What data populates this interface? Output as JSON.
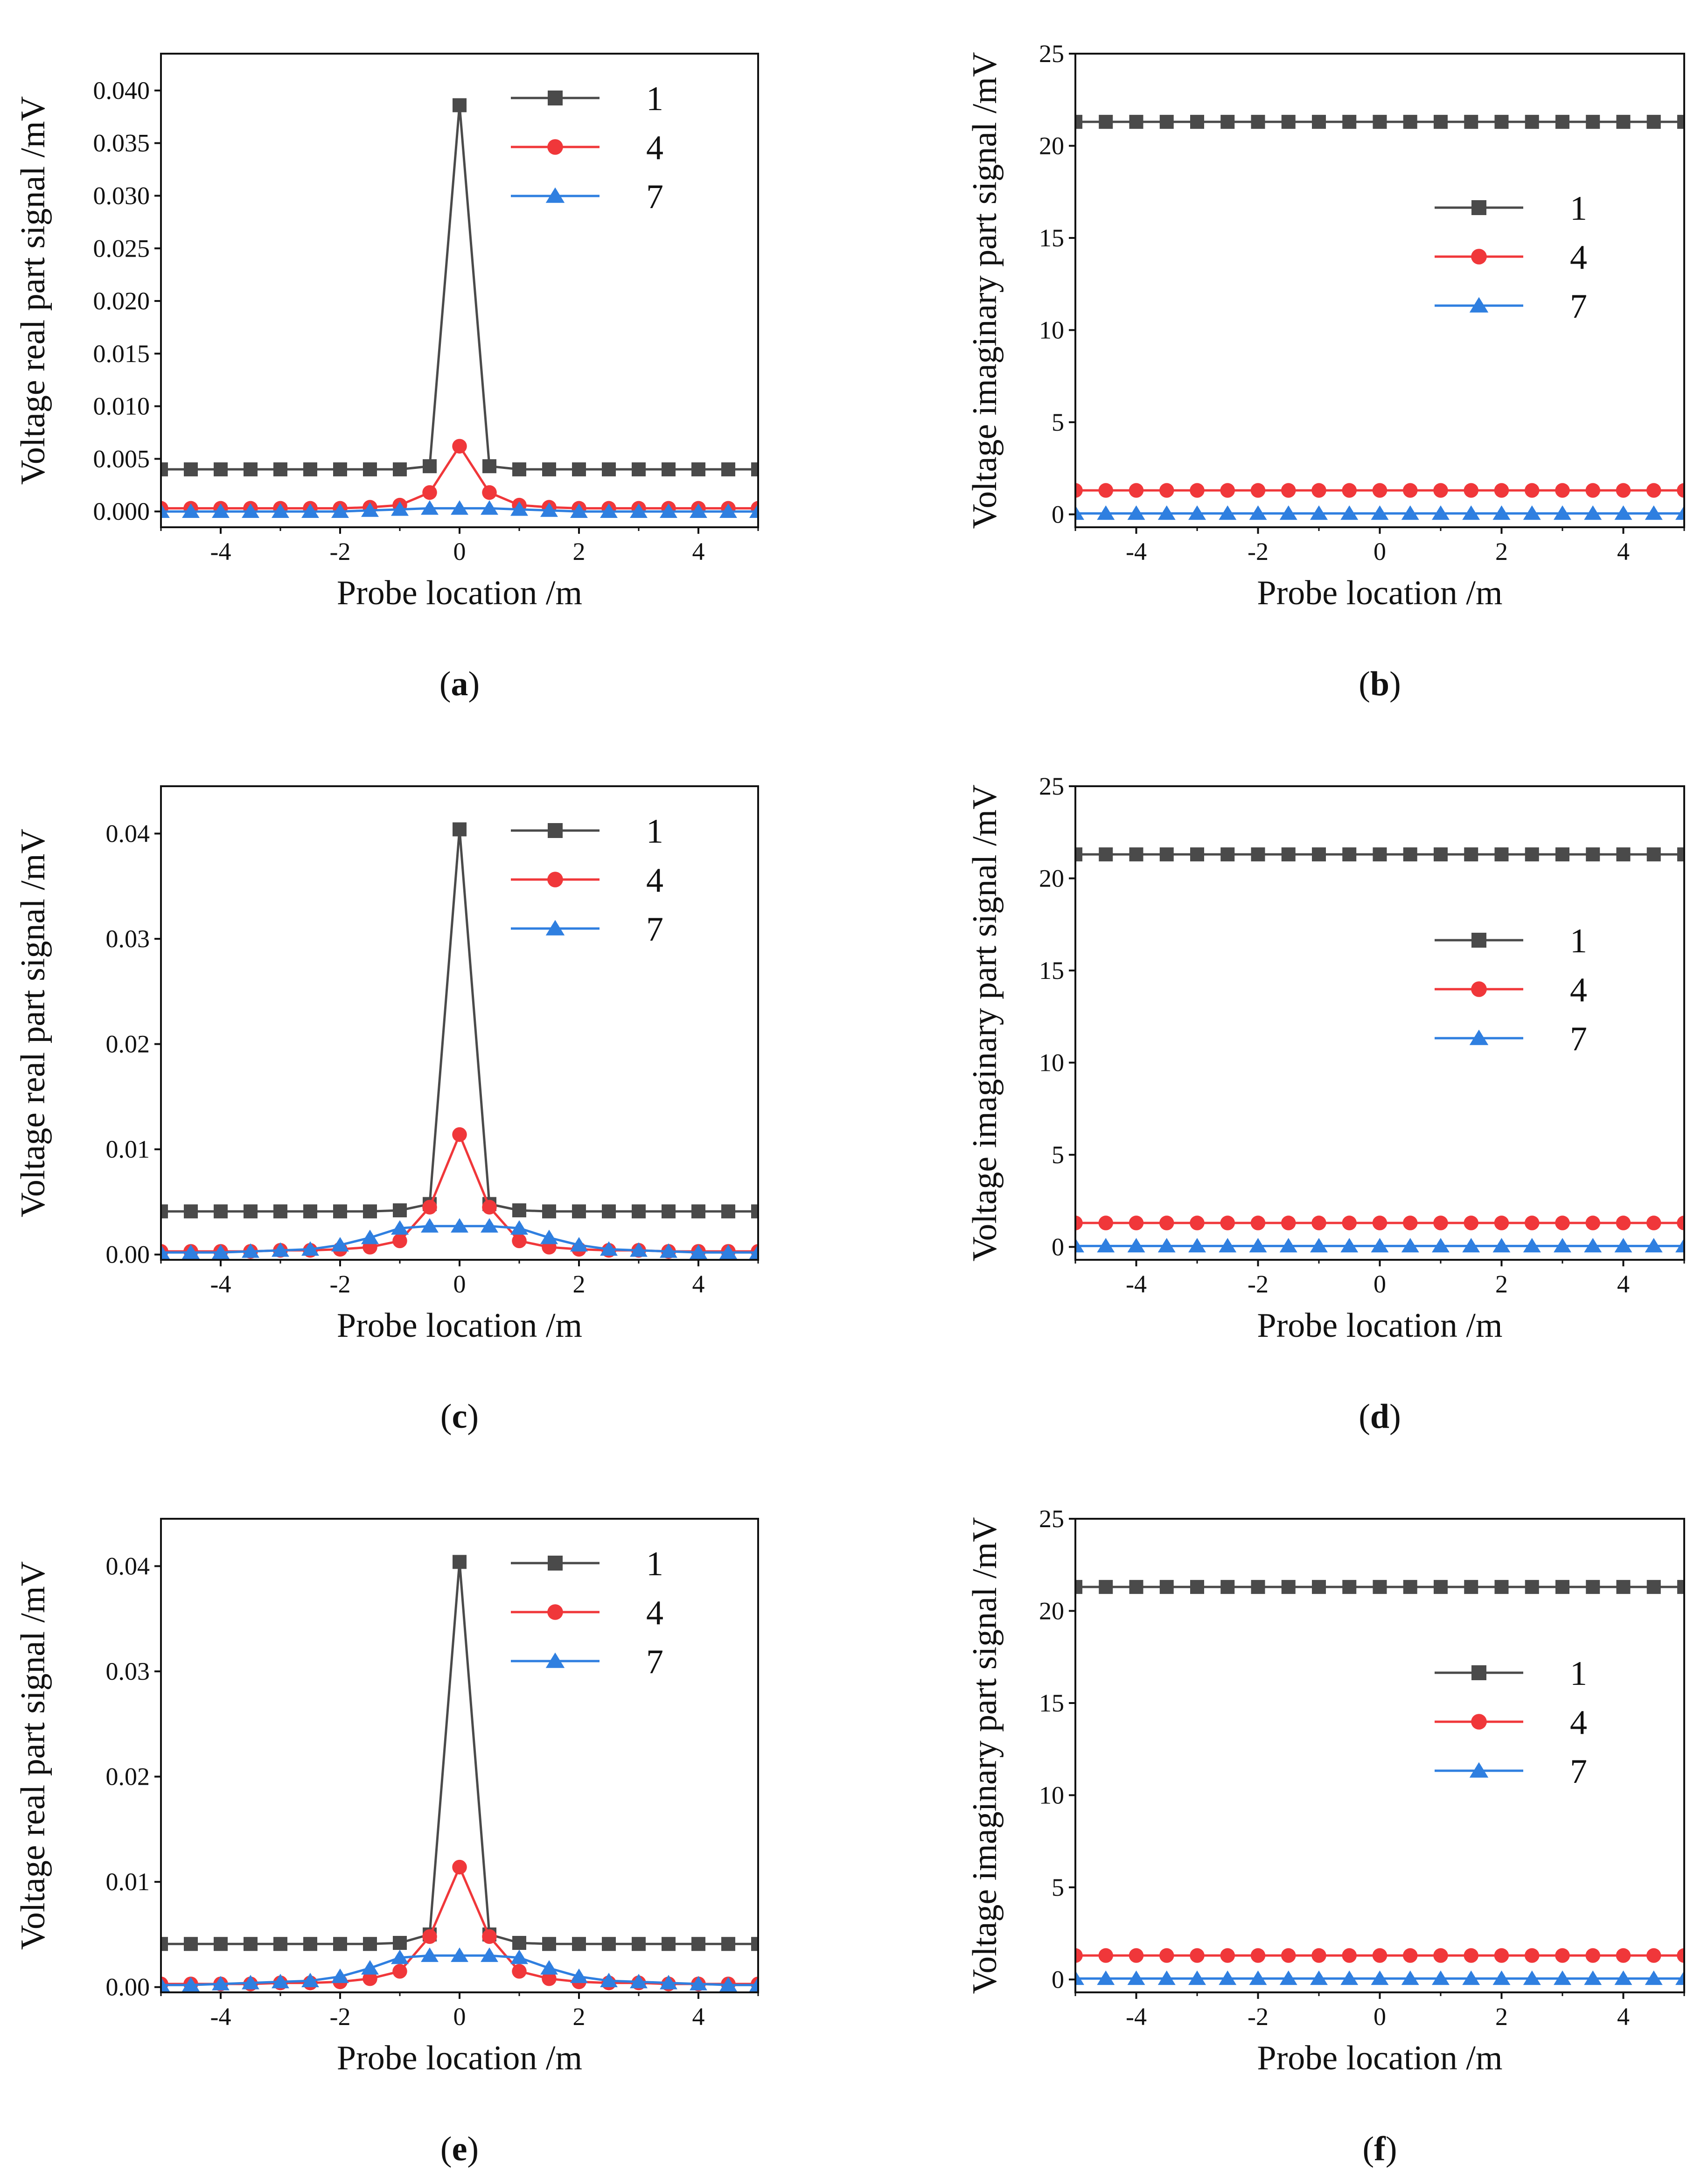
{
  "figure": {
    "colors": {
      "s1": "#4a4a4a",
      "s4": "#f0373a",
      "s7": "#2f7fe0",
      "axis": "#111111"
    }
  },
  "chart_data": [
    {
      "panel": "a",
      "caption": "(a)",
      "type": "line",
      "xlabel": "Probe location  /m",
      "ylabel": "Voltage real part signal /mV",
      "xlim": [
        -5,
        5
      ],
      "ylim": [
        -0.0015,
        0.0435
      ],
      "xticks": [
        -4,
        -2,
        0,
        2,
        4
      ],
      "xtick_labels": [
        "-4",
        "-2",
        "0",
        "2",
        "4"
      ],
      "yticks": [
        0,
        0.005,
        0.01,
        0.015,
        0.02,
        0.025,
        0.03,
        0.035,
        0.04
      ],
      "ytick_labels": [
        "0.000",
        "0.005",
        "0.010",
        "0.015",
        "0.020",
        "0.025",
        "0.030",
        "0.035",
        "0.040"
      ],
      "legend_position": "top-center",
      "x": [
        -5,
        -4.5,
        -4,
        -3.5,
        -3,
        -2.5,
        -2,
        -1.5,
        -1,
        -0.5,
        0,
        0.5,
        1,
        1.5,
        2,
        2.5,
        3,
        3.5,
        4,
        4.5,
        5
      ],
      "series": [
        {
          "name": "1",
          "marker": "square",
          "values": [
            0.004,
            0.004,
            0.004,
            0.004,
            0.004,
            0.004,
            0.004,
            0.004,
            0.004,
            0.0043,
            0.0386,
            0.0043,
            0.004,
            0.004,
            0.004,
            0.004,
            0.004,
            0.004,
            0.004,
            0.004,
            0.004
          ]
        },
        {
          "name": "4",
          "marker": "circle",
          "values": [
            0.0003,
            0.0003,
            0.0003,
            0.0003,
            0.0003,
            0.0003,
            0.0003,
            0.0004,
            0.0006,
            0.0018,
            0.0062,
            0.0018,
            0.0006,
            0.0004,
            0.0003,
            0.0003,
            0.0003,
            0.0003,
            0.0003,
            0.0003,
            0.0003
          ]
        },
        {
          "name": "7",
          "marker": "triangle",
          "values": [
            0.0,
            0.0,
            0.0,
            0.0,
            0.0,
            0.0,
            0.0,
            0.0001,
            0.0002,
            0.0003,
            0.0003,
            0.0003,
            0.0002,
            0.0001,
            0.0,
            0.0,
            0.0,
            0.0,
            0.0,
            0.0,
            0.0
          ]
        }
      ]
    },
    {
      "panel": "b",
      "caption": "(b)",
      "type": "line",
      "xlabel": "Probe location  /m",
      "ylabel": "Voltage imaginary part signal /mV",
      "xlim": [
        -5,
        5
      ],
      "ylim": [
        -0.7,
        25
      ],
      "xticks": [
        -4,
        -2,
        0,
        2,
        4
      ],
      "xtick_labels": [
        "-4",
        "-2",
        "0",
        "2",
        "4"
      ],
      "yticks": [
        0,
        5,
        10,
        15,
        20,
        25
      ],
      "ytick_labels": [
        "0",
        "5",
        "10",
        "15",
        "20",
        "25"
      ],
      "legend_position": "center-right",
      "x": [
        -5,
        -4.5,
        -4,
        -3.5,
        -3,
        -2.5,
        -2,
        -1.5,
        -1,
        -0.5,
        0,
        0.5,
        1,
        1.5,
        2,
        2.5,
        3,
        3.5,
        4,
        4.5,
        5
      ],
      "series": [
        {
          "name": "1",
          "marker": "square",
          "values": [
            21.3,
            21.3,
            21.3,
            21.3,
            21.3,
            21.3,
            21.3,
            21.3,
            21.3,
            21.3,
            21.3,
            21.3,
            21.3,
            21.3,
            21.3,
            21.3,
            21.3,
            21.3,
            21.3,
            21.3,
            21.3
          ]
        },
        {
          "name": "4",
          "marker": "circle",
          "values": [
            1.3,
            1.3,
            1.3,
            1.3,
            1.3,
            1.3,
            1.3,
            1.3,
            1.3,
            1.3,
            1.3,
            1.3,
            1.3,
            1.3,
            1.3,
            1.3,
            1.3,
            1.3,
            1.3,
            1.3,
            1.3
          ]
        },
        {
          "name": "7",
          "marker": "triangle",
          "values": [
            0.05,
            0.05,
            0.05,
            0.05,
            0.05,
            0.05,
            0.05,
            0.05,
            0.05,
            0.05,
            0.05,
            0.05,
            0.05,
            0.05,
            0.05,
            0.05,
            0.05,
            0.05,
            0.05,
            0.05,
            0.05
          ]
        }
      ]
    },
    {
      "panel": "c",
      "caption": "(c)",
      "type": "line",
      "xlabel": "Probe location  /m",
      "ylabel": "Voltage real part signal /mV",
      "xlim": [
        -5,
        5
      ],
      "ylim": [
        -0.0005,
        0.0445
      ],
      "xticks": [
        -4,
        -2,
        0,
        2,
        4
      ],
      "xtick_labels": [
        "-4",
        "-2",
        "0",
        "2",
        "4"
      ],
      "yticks": [
        0,
        0.01,
        0.02,
        0.03,
        0.04
      ],
      "ytick_labels": [
        "0.00",
        "0.01",
        "0.02",
        "0.03",
        "0.04"
      ],
      "legend_position": "top-center",
      "x": [
        -5,
        -4.5,
        -4,
        -3.5,
        -3,
        -2.5,
        -2,
        -1.5,
        -1,
        -0.5,
        0,
        0.5,
        1,
        1.5,
        2,
        2.5,
        3,
        3.5,
        4,
        4.5,
        5
      ],
      "series": [
        {
          "name": "1",
          "marker": "square",
          "values": [
            0.0041,
            0.0041,
            0.0041,
            0.0041,
            0.0041,
            0.0041,
            0.0041,
            0.0041,
            0.0042,
            0.0048,
            0.0404,
            0.0048,
            0.0042,
            0.0041,
            0.0041,
            0.0041,
            0.0041,
            0.0041,
            0.0041,
            0.0041,
            0.0041
          ]
        },
        {
          "name": "4",
          "marker": "circle",
          "values": [
            0.0003,
            0.0003,
            0.0003,
            0.0003,
            0.0004,
            0.0004,
            0.0005,
            0.0007,
            0.0013,
            0.0045,
            0.0114,
            0.0045,
            0.0013,
            0.0007,
            0.0005,
            0.0004,
            0.0004,
            0.0003,
            0.0003,
            0.0003,
            0.0003
          ]
        },
        {
          "name": "7",
          "marker": "triangle",
          "values": [
            0.0002,
            0.0002,
            0.0002,
            0.0003,
            0.0004,
            0.0005,
            0.0009,
            0.0016,
            0.0025,
            0.0027,
            0.0027,
            0.0027,
            0.0025,
            0.0016,
            0.0009,
            0.0005,
            0.0004,
            0.0003,
            0.0002,
            0.0002,
            0.0002
          ]
        }
      ]
    },
    {
      "panel": "d",
      "caption": "(d)",
      "type": "line",
      "xlabel": "Probe location  /m",
      "ylabel": "Voltage imaginary part signal /mV",
      "xlim": [
        -5,
        5
      ],
      "ylim": [
        -0.7,
        25
      ],
      "xticks": [
        -4,
        -2,
        0,
        2,
        4
      ],
      "xtick_labels": [
        "-4",
        "-2",
        "0",
        "2",
        "4"
      ],
      "yticks": [
        0,
        5,
        10,
        15,
        20,
        25
      ],
      "ytick_labels": [
        "0",
        "5",
        "10",
        "15",
        "20",
        "25"
      ],
      "legend_position": "center-right",
      "x": [
        -5,
        -4.5,
        -4,
        -3.5,
        -3,
        -2.5,
        -2,
        -1.5,
        -1,
        -0.5,
        0,
        0.5,
        1,
        1.5,
        2,
        2.5,
        3,
        3.5,
        4,
        4.5,
        5
      ],
      "series": [
        {
          "name": "1",
          "marker": "square",
          "values": [
            21.3,
            21.3,
            21.3,
            21.3,
            21.3,
            21.3,
            21.3,
            21.3,
            21.3,
            21.3,
            21.3,
            21.3,
            21.3,
            21.3,
            21.3,
            21.3,
            21.3,
            21.3,
            21.3,
            21.3,
            21.3
          ]
        },
        {
          "name": "4",
          "marker": "circle",
          "values": [
            1.3,
            1.3,
            1.3,
            1.3,
            1.3,
            1.3,
            1.3,
            1.3,
            1.3,
            1.3,
            1.3,
            1.3,
            1.3,
            1.3,
            1.3,
            1.3,
            1.3,
            1.3,
            1.3,
            1.3,
            1.3
          ]
        },
        {
          "name": "7",
          "marker": "triangle",
          "values": [
            0.05,
            0.05,
            0.05,
            0.05,
            0.05,
            0.05,
            0.05,
            0.05,
            0.05,
            0.05,
            0.05,
            0.05,
            0.05,
            0.05,
            0.05,
            0.05,
            0.05,
            0.05,
            0.05,
            0.05,
            0.05
          ]
        }
      ]
    },
    {
      "panel": "e",
      "caption": "(e)",
      "type": "line",
      "xlabel": "Probe location  /m",
      "ylabel": "Voltage real part signal /mV",
      "xlim": [
        -5,
        5
      ],
      "ylim": [
        -0.0005,
        0.0445
      ],
      "xticks": [
        -4,
        -2,
        0,
        2,
        4
      ],
      "xtick_labels": [
        "-4",
        "-2",
        "0",
        "2",
        "4"
      ],
      "yticks": [
        0,
        0.01,
        0.02,
        0.03,
        0.04
      ],
      "ytick_labels": [
        "0.00",
        "0.01",
        "0.02",
        "0.03",
        "0.04"
      ],
      "legend_position": "top-center",
      "x": [
        -5,
        -4.5,
        -4,
        -3.5,
        -3,
        -2.5,
        -2,
        -1.5,
        -1,
        -0.5,
        0,
        0.5,
        1,
        1.5,
        2,
        2.5,
        3,
        3.5,
        4,
        4.5,
        5
      ],
      "series": [
        {
          "name": "1",
          "marker": "square",
          "values": [
            0.0041,
            0.0041,
            0.0041,
            0.0041,
            0.0041,
            0.0041,
            0.0041,
            0.0041,
            0.0042,
            0.005,
            0.0404,
            0.005,
            0.0042,
            0.0041,
            0.0041,
            0.0041,
            0.0041,
            0.0041,
            0.0041,
            0.0041,
            0.0041
          ]
        },
        {
          "name": "4",
          "marker": "circle",
          "values": [
            0.0003,
            0.0003,
            0.0003,
            0.0003,
            0.0004,
            0.0004,
            0.0005,
            0.0008,
            0.0015,
            0.0048,
            0.0114,
            0.0048,
            0.0015,
            0.0008,
            0.0005,
            0.0004,
            0.0004,
            0.0003,
            0.0003,
            0.0003,
            0.0003
          ]
        },
        {
          "name": "7",
          "marker": "triangle",
          "values": [
            0.0002,
            0.0002,
            0.0003,
            0.0004,
            0.0005,
            0.0006,
            0.001,
            0.0018,
            0.0028,
            0.003,
            0.003,
            0.003,
            0.0028,
            0.0018,
            0.001,
            0.0006,
            0.0005,
            0.0004,
            0.0003,
            0.0002,
            0.0002
          ]
        }
      ]
    },
    {
      "panel": "f",
      "caption": "(f)",
      "type": "line",
      "xlabel": "Probe location  /m",
      "ylabel": "Voltage imaginary part signal /mV",
      "xlim": [
        -5,
        5
      ],
      "ylim": [
        -0.7,
        25
      ],
      "xticks": [
        -4,
        -2,
        0,
        2,
        4
      ],
      "xtick_labels": [
        "-4",
        "-2",
        "0",
        "2",
        "4"
      ],
      "yticks": [
        0,
        5,
        10,
        15,
        20,
        25
      ],
      "ytick_labels": [
        "0",
        "5",
        "10",
        "15",
        "20",
        "25"
      ],
      "legend_position": "center-right",
      "x": [
        -5,
        -4.5,
        -4,
        -3.5,
        -3,
        -2.5,
        -2,
        -1.5,
        -1,
        -0.5,
        0,
        0.5,
        1,
        1.5,
        2,
        2.5,
        3,
        3.5,
        4,
        4.5,
        5
      ],
      "series": [
        {
          "name": "1",
          "marker": "square",
          "values": [
            21.3,
            21.3,
            21.3,
            21.3,
            21.3,
            21.3,
            21.3,
            21.3,
            21.3,
            21.3,
            21.3,
            21.3,
            21.3,
            21.3,
            21.3,
            21.3,
            21.3,
            21.3,
            21.3,
            21.3,
            21.3
          ]
        },
        {
          "name": "4",
          "marker": "circle",
          "values": [
            1.3,
            1.3,
            1.3,
            1.3,
            1.3,
            1.3,
            1.3,
            1.3,
            1.3,
            1.3,
            1.3,
            1.3,
            1.3,
            1.3,
            1.3,
            1.3,
            1.3,
            1.3,
            1.3,
            1.3,
            1.3
          ]
        },
        {
          "name": "7",
          "marker": "triangle",
          "values": [
            0.05,
            0.05,
            0.05,
            0.05,
            0.05,
            0.05,
            0.05,
            0.05,
            0.05,
            0.05,
            0.05,
            0.05,
            0.05,
            0.05,
            0.05,
            0.05,
            0.05,
            0.05,
            0.05,
            0.05,
            0.05
          ]
        }
      ]
    }
  ]
}
